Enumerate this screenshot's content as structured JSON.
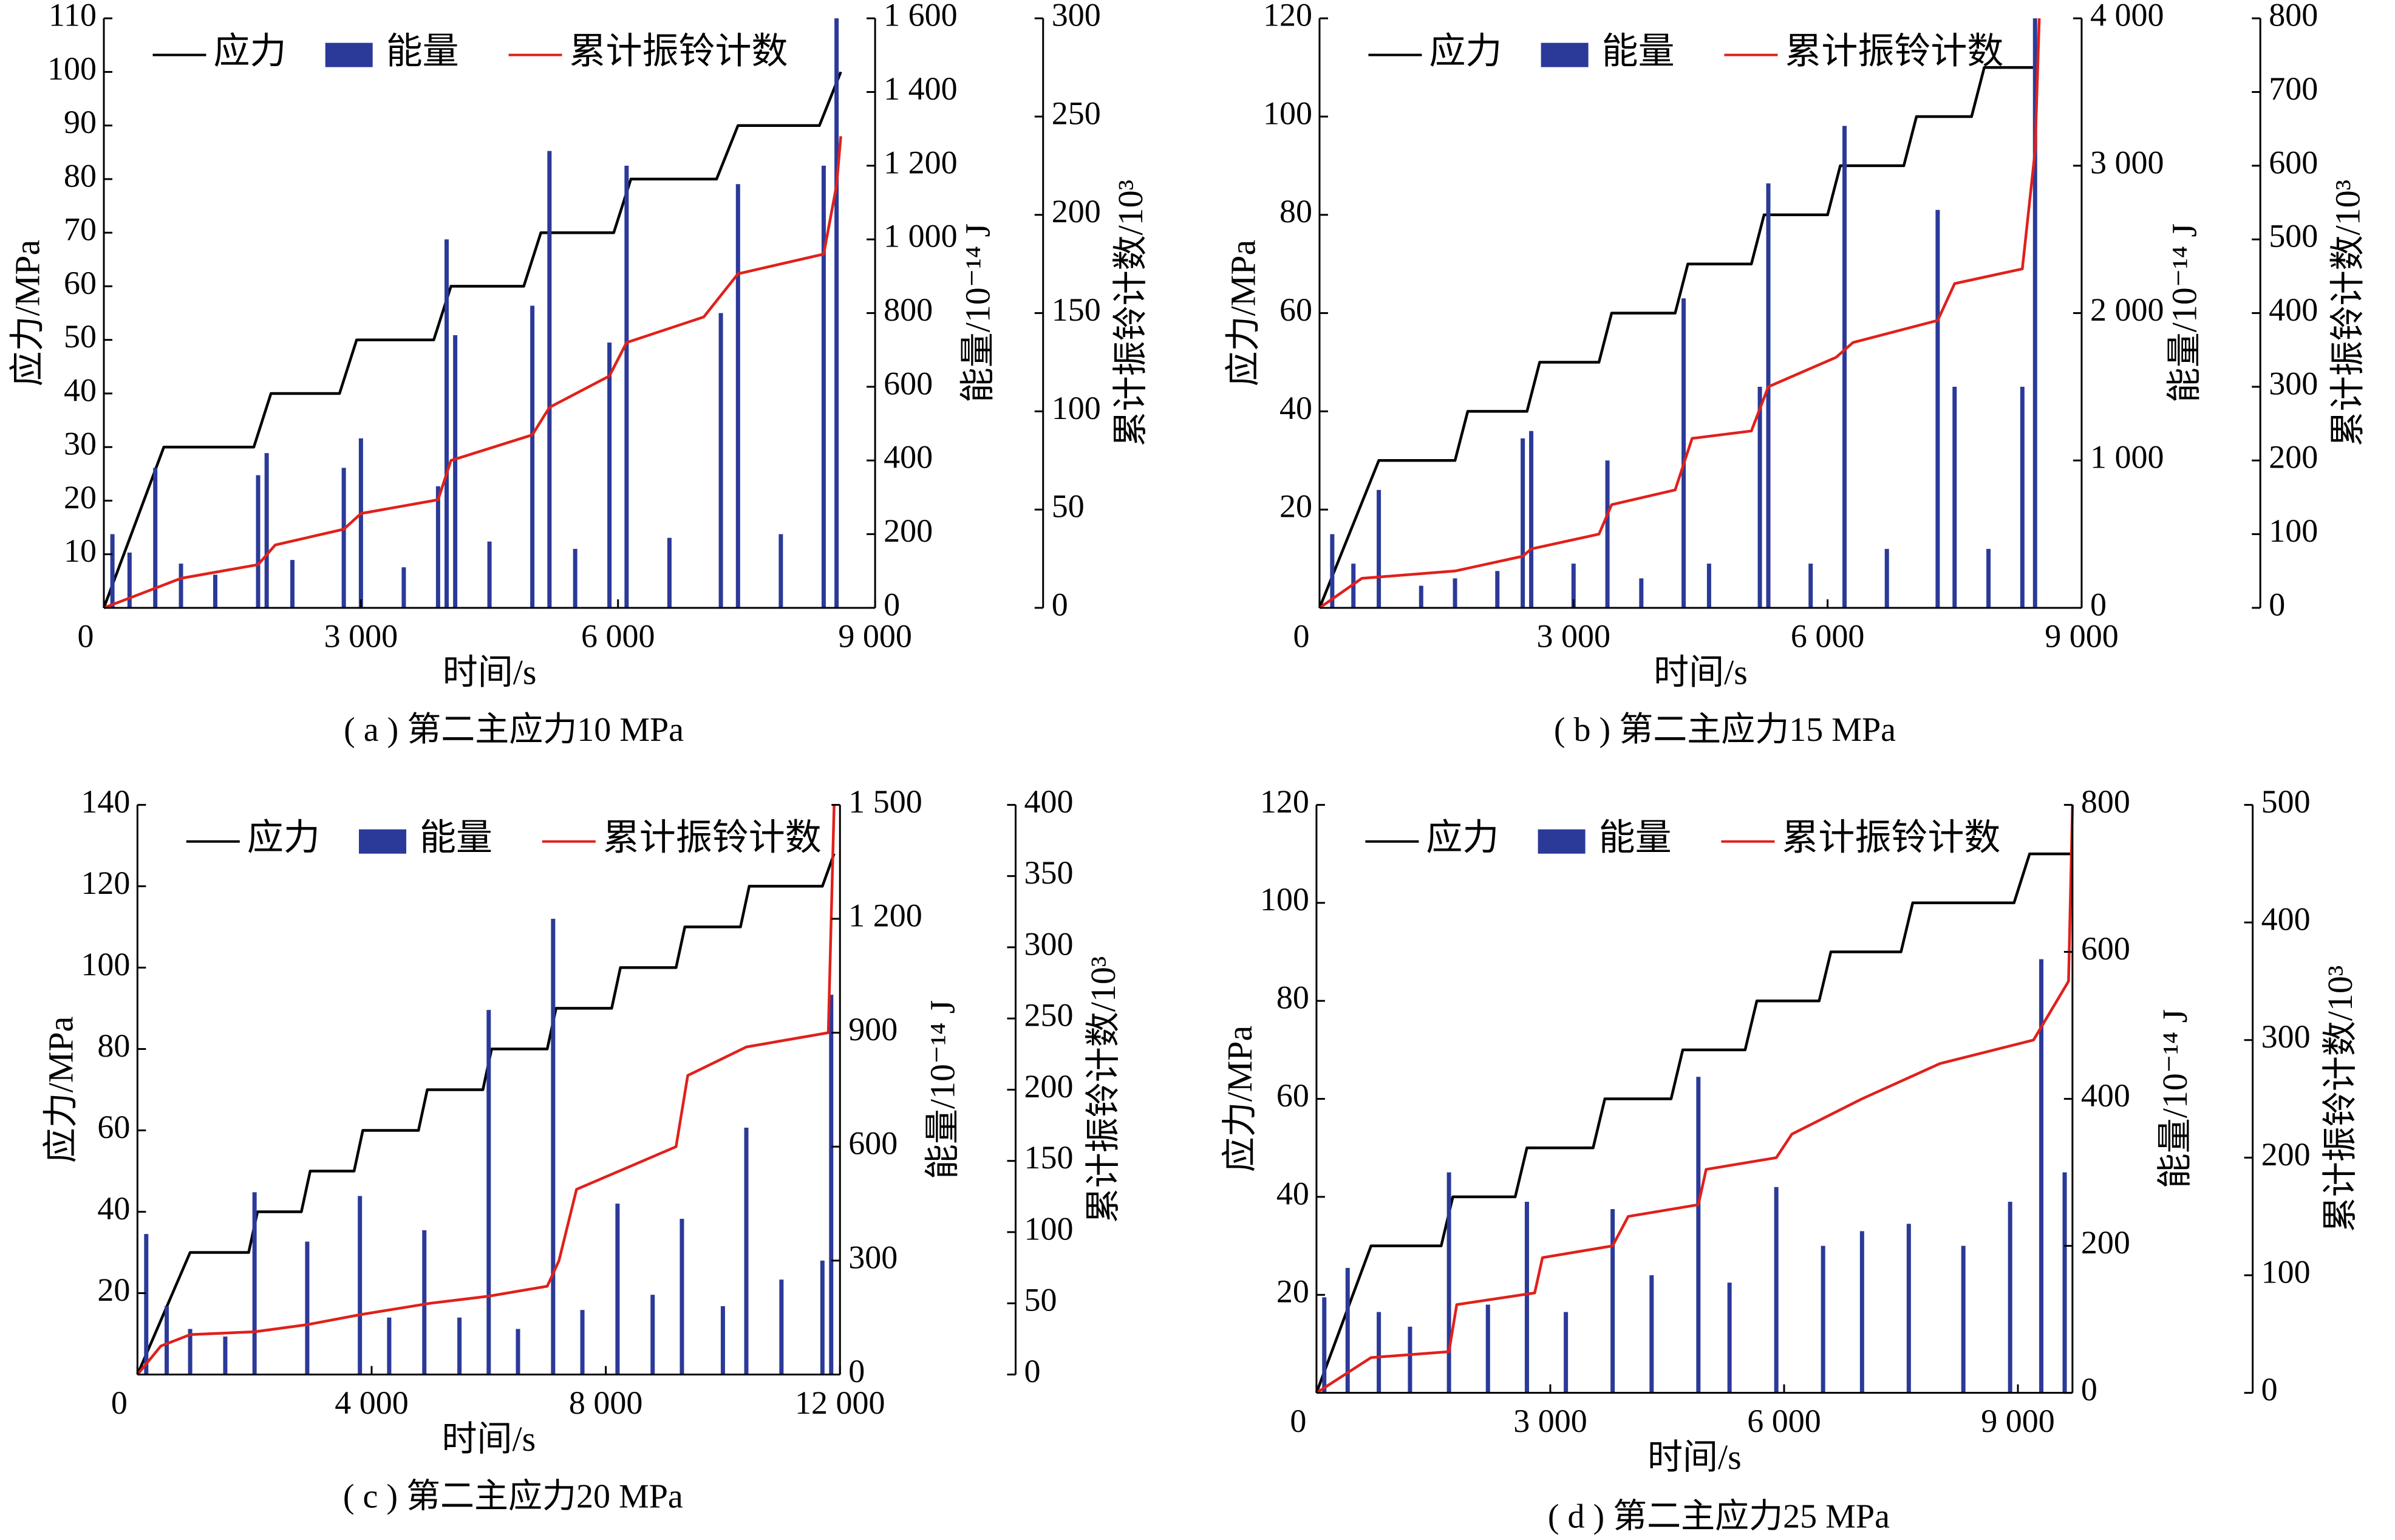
{
  "chart_data": [
    {
      "type": "combo",
      "caption": "( a ) 第二主应力10 MPa",
      "xlabel": "时间/s",
      "ylabel": "应力/MPa",
      "y2label": "能量/10⁻¹⁴ J",
      "y3label": "累计振铃计数/10³",
      "legend": "top",
      "xlim": [
        0,
        9000
      ],
      "xticks": [
        0,
        {
          "value": 3000,
          "label": "3 000"
        },
        {
          "value": 6000,
          "label": "6 000"
        },
        {
          "value": 9000,
          "label": "9 000"
        }
      ],
      "ylim": [
        0,
        110
      ],
      "yticks": [
        10,
        20,
        30,
        40,
        50,
        60,
        70,
        80,
        90,
        100,
        110
      ],
      "y2lim": [
        0,
        1600
      ],
      "y2ticks": [
        0,
        200,
        400,
        600,
        800,
        {
          "value": 1000,
          "label": "1 000"
        },
        {
          "value": 1200,
          "label": "1 200"
        },
        {
          "value": 1400,
          "label": "1 400"
        },
        {
          "value": 1600,
          "label": "1 600"
        }
      ],
      "y3lim": [
        0,
        300
      ],
      "y3ticks": [
        0,
        50,
        100,
        150,
        200,
        250,
        300
      ],
      "series": [
        {
          "name": "应力",
          "color": "#000000",
          "kind": "line",
          "axis": "y",
          "x": [
            0,
            700,
            1750,
            1950,
            2750,
            2950,
            3850,
            4050,
            4900,
            5100,
            5950,
            6150,
            7150,
            7400,
            8350,
            8600
          ],
          "values": [
            0,
            30,
            30,
            40,
            40,
            50,
            50,
            60,
            60,
            70,
            70,
            80,
            80,
            90,
            90,
            100
          ]
        },
        {
          "name": "能量",
          "color": "#2b3a98",
          "kind": "bar",
          "axis": "y2",
          "x": [
            100,
            300,
            600,
            900,
            1300,
            1800,
            1900,
            2200,
            2800,
            3000,
            3500,
            3900,
            4000,
            4100,
            4500,
            5000,
            5200,
            5500,
            5900,
            6100,
            6600,
            7200,
            7400,
            7900,
            8400,
            8550
          ],
          "values": [
            200,
            150,
            380,
            120,
            90,
            360,
            420,
            130,
            380,
            460,
            110,
            330,
            1000,
            740,
            180,
            820,
            1240,
            160,
            720,
            1200,
            190,
            800,
            1150,
            200,
            1200,
            1600
          ]
        },
        {
          "name": "累计振铃计数",
          "color": "#e0201b",
          "kind": "line",
          "axis": "y3",
          "x": [
            0,
            300,
            900,
            1800,
            2000,
            2800,
            3000,
            3900,
            4050,
            5000,
            5200,
            5900,
            6100,
            7000,
            7400,
            8400,
            8550,
            8600
          ],
          "values": [
            0,
            5,
            15,
            22,
            32,
            40,
            48,
            55,
            75,
            88,
            102,
            118,
            135,
            148,
            170,
            180,
            215,
            240
          ]
        }
      ]
    },
    {
      "type": "combo",
      "caption": "( b ) 第二主应力15 MPa",
      "xlabel": "时间/s",
      "ylabel": "应力/MPa",
      "y2label": "能量/10⁻¹⁴ J",
      "y3label": "累计振铃计数/10³",
      "legend": "top",
      "xlim": [
        0,
        9000
      ],
      "xticks": [
        0,
        {
          "value": 3000,
          "label": "3 000"
        },
        {
          "value": 6000,
          "label": "6 000"
        },
        {
          "value": 9000,
          "label": "9 000"
        }
      ],
      "ylim": [
        0,
        120
      ],
      "yticks": [
        20,
        40,
        60,
        80,
        100,
        120
      ],
      "y2lim": [
        0,
        4000
      ],
      "y2ticks": [
        0,
        {
          "value": 1000,
          "label": "1 000"
        },
        {
          "value": 2000,
          "label": "2 000"
        },
        {
          "value": 3000,
          "label": "3 000"
        },
        {
          "value": 4000,
          "label": "4 000"
        }
      ],
      "y3lim": [
        0,
        800
      ],
      "y3ticks": [
        0,
        100,
        200,
        300,
        400,
        500,
        600,
        700,
        800
      ],
      "series": [
        {
          "name": "应力",
          "color": "#000000",
          "kind": "line",
          "axis": "y",
          "x": [
            0,
            700,
            1600,
            1750,
            2450,
            2600,
            3300,
            3450,
            4200,
            4350,
            5100,
            5250,
            6000,
            6150,
            6900,
            7050,
            7700,
            7850,
            8300,
            8450
          ],
          "values": [
            0,
            30,
            30,
            40,
            40,
            50,
            50,
            60,
            60,
            70,
            70,
            80,
            80,
            90,
            90,
            100,
            100,
            110,
            110,
            110
          ]
        },
        {
          "name": "能量",
          "color": "#2b3a98",
          "kind": "bar",
          "axis": "y2",
          "x": [
            150,
            400,
            700,
            1200,
            1600,
            2100,
            2400,
            2500,
            3000,
            3400,
            3800,
            4300,
            4600,
            5200,
            5300,
            5800,
            6200,
            6700,
            7300,
            7500,
            7900,
            8300,
            8450
          ],
          "values": [
            500,
            300,
            800,
            150,
            200,
            250,
            1150,
            1200,
            300,
            1000,
            200,
            2100,
            300,
            1500,
            2880,
            300,
            3270,
            400,
            2700,
            1500,
            400,
            1500,
            4000
          ]
        },
        {
          "name": "累计振铃计数",
          "color": "#e0201b",
          "kind": "line",
          "axis": "y3",
          "x": [
            0,
            500,
            1600,
            2400,
            2500,
            3300,
            3450,
            4200,
            4400,
            5100,
            5300,
            6100,
            6300,
            7300,
            7500,
            8300,
            8450,
            8500
          ],
          "values": [
            0,
            40,
            50,
            70,
            80,
            100,
            140,
            160,
            230,
            240,
            300,
            340,
            360,
            390,
            440,
            460,
            620,
            800
          ]
        }
      ]
    },
    {
      "type": "combo",
      "caption": "( c ) 第二主应力20 MPa",
      "xlabel": "时间/s",
      "ylabel": "应力/MPa",
      "y2label": "能量/10⁻¹⁴ J",
      "y3label": "累计振铃计数/10³",
      "legend": "top",
      "xlim": [
        0,
        12000
      ],
      "xticks": [
        0,
        {
          "value": 4000,
          "label": "4 000"
        },
        {
          "value": 8000,
          "label": "8 000"
        },
        {
          "value": 12000,
          "label": "12 000"
        }
      ],
      "ylim": [
        0,
        140
      ],
      "yticks": [
        20,
        40,
        60,
        80,
        100,
        120,
        140
      ],
      "y2lim": [
        0,
        1500
      ],
      "y2ticks": [
        0,
        300,
        600,
        900,
        {
          "value": 1200,
          "label": "1 200"
        },
        {
          "value": 1500,
          "label": "1 500"
        }
      ],
      "y3lim": [
        0,
        400
      ],
      "y3ticks": [
        0,
        50,
        100,
        150,
        200,
        250,
        300,
        350,
        400
      ],
      "series": [
        {
          "name": "应力",
          "color": "#000000",
          "kind": "line",
          "axis": "y",
          "x": [
            0,
            900,
            1900,
            2050,
            2800,
            2950,
            3700,
            3850,
            4800,
            4950,
            5900,
            6050,
            7000,
            7150,
            8100,
            8250,
            9200,
            9350,
            10300,
            10450,
            11700,
            11900
          ],
          "values": [
            0,
            30,
            30,
            40,
            40,
            50,
            50,
            60,
            60,
            70,
            70,
            80,
            80,
            90,
            90,
            100,
            100,
            110,
            110,
            120,
            120,
            128
          ]
        },
        {
          "name": "能量",
          "color": "#2b3a98",
          "kind": "bar",
          "axis": "y2",
          "x": [
            150,
            500,
            900,
            1500,
            2000,
            2900,
            3800,
            4300,
            4900,
            5500,
            6000,
            6500,
            7100,
            7600,
            8200,
            8800,
            9300,
            10000,
            10400,
            11000,
            11700,
            11850
          ],
          "values": [
            370,
            180,
            120,
            100,
            480,
            350,
            470,
            150,
            380,
            150,
            960,
            120,
            1200,
            170,
            450,
            210,
            410,
            180,
            650,
            250,
            300,
            1000
          ]
        },
        {
          "name": "累计振铃计数",
          "color": "#e0201b",
          "kind": "line",
          "axis": "y3",
          "x": [
            0,
            400,
            900,
            2000,
            2900,
            3800,
            5000,
            6000,
            7000,
            7200,
            7500,
            9200,
            9400,
            10400,
            11800,
            11900
          ],
          "values": [
            0,
            20,
            28,
            30,
            35,
            42,
            50,
            55,
            62,
            80,
            130,
            160,
            210,
            230,
            240,
            400
          ]
        }
      ]
    },
    {
      "type": "combo",
      "caption": "( d ) 第二主应力25 MPa",
      "xlabel": "时间/s",
      "ylabel": "应力/MPa",
      "y2label": "能量/10⁻¹⁴ J",
      "y3label": "累计振铃计数/10³",
      "legend": "top",
      "xlim": [
        0,
        9700
      ],
      "xticks": [
        0,
        {
          "value": 3000,
          "label": "3 000"
        },
        {
          "value": 6000,
          "label": "6 000"
        },
        {
          "value": 9000,
          "label": "9 000"
        }
      ],
      "ylim": [
        0,
        120
      ],
      "yticks": [
        20,
        40,
        60,
        80,
        100,
        120
      ],
      "y2lim": [
        0,
        800
      ],
      "y2ticks": [
        0,
        200,
        400,
        600,
        800
      ],
      "y3lim": [
        0,
        500
      ],
      "y3ticks": [
        0,
        100,
        200,
        300,
        400,
        500
      ],
      "series": [
        {
          "name": "应力",
          "color": "#000000",
          "kind": "line",
          "axis": "y",
          "x": [
            0,
            700,
            1600,
            1750,
            2550,
            2700,
            3550,
            3700,
            4550,
            4700,
            5500,
            5650,
            6450,
            6600,
            7500,
            7650,
            8950,
            9150,
            9700
          ],
          "values": [
            0,
            30,
            30,
            40,
            40,
            50,
            50,
            60,
            60,
            70,
            70,
            80,
            80,
            90,
            90,
            100,
            100,
            110,
            110
          ]
        },
        {
          "name": "能量",
          "color": "#2b3a98",
          "kind": "bar",
          "axis": "y2",
          "x": [
            100,
            400,
            800,
            1200,
            1700,
            2200,
            2700,
            3200,
            3800,
            4300,
            4900,
            5300,
            5900,
            6500,
            7000,
            7600,
            8300,
            8900,
            9300,
            9600
          ],
          "values": [
            130,
            170,
            110,
            90,
            300,
            120,
            260,
            110,
            250,
            160,
            430,
            150,
            280,
            200,
            220,
            230,
            200,
            260,
            590,
            300
          ]
        },
        {
          "name": "累计振铃计数",
          "color": "#e0201b",
          "kind": "line",
          "axis": "y3",
          "x": [
            0,
            700,
            1700,
            1800,
            2800,
            2900,
            3800,
            4000,
            4900,
            5000,
            5900,
            6100,
            7000,
            8000,
            9200,
            9650,
            9700
          ],
          "values": [
            0,
            30,
            35,
            75,
            85,
            115,
            125,
            150,
            160,
            190,
            200,
            220,
            250,
            280,
            300,
            350,
            500
          ]
        }
      ]
    }
  ]
}
